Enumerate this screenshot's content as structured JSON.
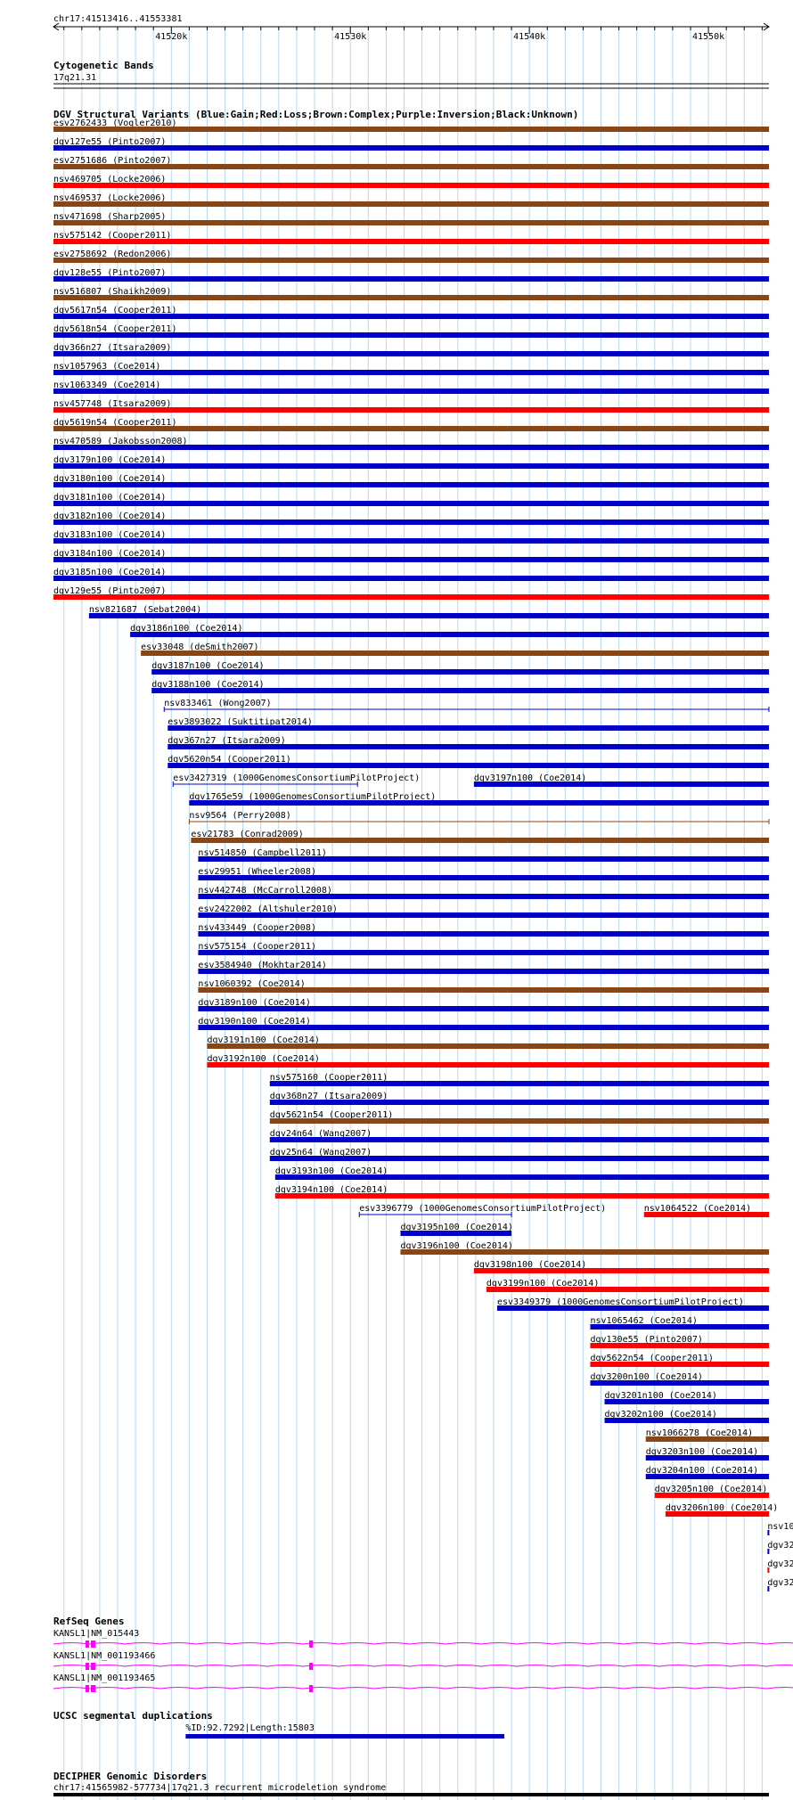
{
  "position": "chr17:41513416..41553381",
  "ruler": {
    "start": 41513416,
    "end": 41553381,
    "ticks": [
      {
        "label": "41520k",
        "pos": 41520000
      },
      {
        "label": "41530k",
        "pos": 41530000
      },
      {
        "label": "41540k",
        "pos": 41540000
      },
      {
        "label": "41550k",
        "pos": 41550000
      }
    ]
  },
  "tracks": {
    "cytoband": {
      "title": "Cytogenetic Bands",
      "label": "17q21.31"
    },
    "dgv": {
      "title": "DGV Structural Variants (Blue:Gain;Red:Loss;Brown:Complex;Purple:Inversion;Black:Unknown)",
      "colors": {
        "gain": "#0000cc",
        "loss": "#ff0000",
        "complex": "#8b4513",
        "inversion": "#800080",
        "unknown": "#000000"
      }
    },
    "refseq": {
      "title": "RefSeq Genes",
      "color": "#ff00ff",
      "genes": [
        {
          "label": "KANSL1|NM_015443"
        },
        {
          "label": "KANSL1|NM_001193466"
        },
        {
          "label": "KANSL1|NM_001193465"
        }
      ]
    },
    "segdup": {
      "title": "UCSC segmental duplications",
      "label": "%ID:92.7292|Length:15803",
      "start": 41520800,
      "end": 41538600,
      "color": "#0000cc"
    },
    "decipher": {
      "title": "DECIPHER Genomic Disorders",
      "label": "chr17:41565982-577734|17q21.3 recurrent microdeletion syndrome"
    }
  },
  "variants": [
    {
      "label": "esv2762433 (Vogler2010)",
      "start": 41513416,
      "end": 41553381,
      "type": "complex"
    },
    {
      "label": "dgv127e55 (Pinto2007)",
      "start": 41513416,
      "end": 41553381,
      "type": "gain"
    },
    {
      "label": "esv2751686 (Pinto2007)",
      "start": 41513416,
      "end": 41553381,
      "type": "complex"
    },
    {
      "label": "nsv469705 (Locke2006)",
      "start": 41513416,
      "end": 41553381,
      "type": "loss"
    },
    {
      "label": "nsv469537 (Locke2006)",
      "start": 41513416,
      "end": 41553381,
      "type": "complex"
    },
    {
      "label": "nsv471698 (Sharp2005)",
      "start": 41513416,
      "end": 41553381,
      "type": "complex"
    },
    {
      "label": "nsv575142 (Cooper2011)",
      "start": 41513416,
      "end": 41553381,
      "type": "loss"
    },
    {
      "label": "esv2758692 (Redon2006)",
      "start": 41513416,
      "end": 41553381,
      "type": "complex"
    },
    {
      "label": "dgv128e55 (Pinto2007)",
      "start": 41513416,
      "end": 41553381,
      "type": "gain"
    },
    {
      "label": "nsv516807 (Shaikh2009)",
      "start": 41513416,
      "end": 41553381,
      "type": "complex"
    },
    {
      "label": "dgv5617n54 (Cooper2011)",
      "start": 41513416,
      "end": 41553381,
      "type": "gain"
    },
    {
      "label": "dgv5618n54 (Cooper2011)",
      "start": 41513416,
      "end": 41553381,
      "type": "gain"
    },
    {
      "label": "dgv366n27 (Itsara2009)",
      "start": 41513416,
      "end": 41553381,
      "type": "gain"
    },
    {
      "label": "nsv1057963 (Coe2014)",
      "start": 41513416,
      "end": 41553381,
      "type": "gain"
    },
    {
      "label": "nsv1063349 (Coe2014)",
      "start": 41513416,
      "end": 41553381,
      "type": "gain"
    },
    {
      "label": "nsv457748 (Itsara2009)",
      "start": 41513416,
      "end": 41553381,
      "type": "loss"
    },
    {
      "label": "dgv5619n54 (Cooper2011)",
      "start": 41513416,
      "end": 41553381,
      "type": "complex"
    },
    {
      "label": "nsv470589 (Jakobsson2008)",
      "start": 41513416,
      "end": 41553381,
      "type": "gain"
    },
    {
      "label": "dgv3179n100 (Coe2014)",
      "start": 41513416,
      "end": 41553381,
      "type": "gain"
    },
    {
      "label": "dgv3180n100 (Coe2014)",
      "start": 41513416,
      "end": 41553381,
      "type": "gain"
    },
    {
      "label": "dgv3181n100 (Coe2014)",
      "start": 41513416,
      "end": 41553381,
      "type": "gain"
    },
    {
      "label": "dgv3182n100 (Coe2014)",
      "start": 41513416,
      "end": 41553381,
      "type": "gain"
    },
    {
      "label": "dgv3183n100 (Coe2014)",
      "start": 41513416,
      "end": 41553381,
      "type": "gain"
    },
    {
      "label": "dgv3184n100 (Coe2014)",
      "start": 41513416,
      "end": 41553381,
      "type": "gain"
    },
    {
      "label": "dgv3185n100 (Coe2014)",
      "start": 41513416,
      "end": 41553381,
      "type": "gain"
    },
    {
      "label": "dgv129e55 (Pinto2007)",
      "start": 41513416,
      "end": 41553381,
      "type": "loss"
    },
    {
      "label": "nsv821687 (Sebat2004)",
      "start": 41515400,
      "end": 41553381,
      "type": "gain"
    },
    {
      "label": "dgv3186n100 (Coe2014)",
      "start": 41517700,
      "end": 41553381,
      "type": "gain"
    },
    {
      "label": "esv33048 (deSmith2007)",
      "start": 41518300,
      "end": 41553381,
      "type": "complex"
    },
    {
      "label": "dgv3187n100 (Coe2014)",
      "start": 41518900,
      "end": 41553381,
      "type": "gain"
    },
    {
      "label": "dgv3188n100 (Coe2014)",
      "start": 41518900,
      "end": 41553381,
      "type": "gain"
    },
    {
      "label": "nsv833461 (Wong2007)",
      "start": 41519600,
      "end": 41553381,
      "type": "gain",
      "thin": true
    },
    {
      "label": "esv3893022 (Suktitipat2014)",
      "start": 41519800,
      "end": 41553381,
      "type": "gain"
    },
    {
      "label": "dgv367n27 (Itsara2009)",
      "start": 41519800,
      "end": 41553381,
      "type": "gain"
    },
    {
      "label": "dgv5620n54 (Cooper2011)",
      "start": 41519800,
      "end": 41553381,
      "type": "gain"
    },
    {
      "label": "esv3427319 (1000GenomesConsortiumPilotProject)",
      "start": 41520100,
      "end": 41530400,
      "type": "gain",
      "thin": true
    },
    {
      "label": "dgv1765e59 (1000GenomesConsortiumPilotProject)",
      "start": 41521000,
      "end": 41553381,
      "type": "gain"
    },
    {
      "label": "nsv9564 (Perry2008)",
      "start": 41521000,
      "end": 41553381,
      "type": "complex",
      "thin": true
    },
    {
      "label": "esv21783 (Conrad2009)",
      "start": 41521100,
      "end": 41553381,
      "type": "complex"
    },
    {
      "label": "nsv514850 (Campbell2011)",
      "start": 41521500,
      "end": 41553381,
      "type": "gain"
    },
    {
      "label": "esv29951 (Wheeler2008)",
      "start": 41521500,
      "end": 41553381,
      "type": "gain"
    },
    {
      "label": "nsv442748 (McCarroll2008)",
      "start": 41521500,
      "end": 41553381,
      "type": "gain"
    },
    {
      "label": "esv2422002 (Altshuler2010)",
      "start": 41521500,
      "end": 41553381,
      "type": "gain"
    },
    {
      "label": "nsv433449 (Cooper2008)",
      "start": 41521500,
      "end": 41553381,
      "type": "gain"
    },
    {
      "label": "nsv575154 (Cooper2011)",
      "start": 41521500,
      "end": 41553381,
      "type": "gain"
    },
    {
      "label": "esv3584940 (Mokhtar2014)",
      "start": 41521500,
      "end": 41553381,
      "type": "gain"
    },
    {
      "label": "nsv1060392 (Coe2014)",
      "start": 41521500,
      "end": 41553381,
      "type": "complex"
    },
    {
      "label": "dgv3189n100 (Coe2014)",
      "start": 41521500,
      "end": 41553381,
      "type": "gain"
    },
    {
      "label": "dgv3190n100 (Coe2014)",
      "start": 41521500,
      "end": 41553381,
      "type": "gain"
    },
    {
      "label": "dgv3191n100 (Coe2014)",
      "start": 41522000,
      "end": 41553381,
      "type": "complex"
    },
    {
      "label": "dgv3192n100 (Coe2014)",
      "start": 41522000,
      "end": 41553381,
      "type": "loss"
    },
    {
      "label": "nsv575160 (Cooper2011)",
      "start": 41525500,
      "end": 41553381,
      "type": "gain"
    },
    {
      "label": "dgv368n27 (Itsara2009)",
      "start": 41525500,
      "end": 41553381,
      "type": "gain"
    },
    {
      "label": "dgv5621n54 (Cooper2011)",
      "start": 41525500,
      "end": 41553381,
      "type": "complex"
    },
    {
      "label": "dgv24n64 (Wang2007)",
      "start": 41525500,
      "end": 41553381,
      "type": "gain"
    },
    {
      "label": "dgv25n64 (Wang2007)",
      "start": 41525500,
      "end": 41553381,
      "type": "gain"
    },
    {
      "label": "dgv3193n100 (Coe2014)",
      "start": 41525800,
      "end": 41553381,
      "type": "gain"
    },
    {
      "label": "dgv3194n100 (Coe2014)",
      "start": 41525800,
      "end": 41553381,
      "type": "loss"
    },
    {
      "label": "esv3396779 (1000GenomesConsortiumPilotProject)",
      "start": 41530500,
      "end": 41539000,
      "type": "gain",
      "thin": true
    },
    {
      "label": "dgv3195n100 (Coe2014)",
      "start": 41532800,
      "end": 41539000,
      "type": "gain"
    },
    {
      "label": "dgv3196n100 (Coe2014)",
      "start": 41532800,
      "end": 41553381,
      "type": "complex"
    },
    {
      "label": "dgv3197n100 (Coe2014)",
      "start": 41536900,
      "end": 41553381,
      "type": "gain"
    },
    {
      "label": "dgv3198n100 (Coe2014)",
      "start": 41536900,
      "end": 41553381,
      "type": "loss"
    },
    {
      "label": "dgv3199n100 (Coe2014)",
      "start": 41537600,
      "end": 41553381,
      "type": "loss"
    },
    {
      "label": "esv3349379 (1000GenomesConsortiumPilotProject)",
      "start": 41538200,
      "end": 41553381,
      "type": "gain"
    },
    {
      "label": "nsv1065462 (Coe2014)",
      "start": 41543400,
      "end": 41553381,
      "type": "gain"
    },
    {
      "label": "dgv130e55 (Pinto2007)",
      "start": 41543400,
      "end": 41553381,
      "type": "loss"
    },
    {
      "label": "dgv5622n54 (Cooper2011)",
      "start": 41543400,
      "end": 41553381,
      "type": "loss"
    },
    {
      "label": "dgv3200n100 (Coe2014)",
      "start": 41543400,
      "end": 41553381,
      "type": "gain"
    },
    {
      "label": "dgv3201n100 (Coe2014)",
      "start": 41544200,
      "end": 41553381,
      "type": "gain"
    },
    {
      "label": "dgv3202n100 (Coe2014)",
      "start": 41544200,
      "end": 41553381,
      "type": "gain"
    },
    {
      "label": "nsv1064522 (Coe2014)",
      "start": 41546400,
      "end": 41553381,
      "type": "loss"
    },
    {
      "label": "nsv1066278 (Coe2014)",
      "start": 41546500,
      "end": 41553381,
      "type": "complex"
    },
    {
      "label": "dgv3203n100 (Coe2014)",
      "start": 41546500,
      "end": 41553381,
      "type": "gain"
    },
    {
      "label": "dgv3204n100 (Coe2014)",
      "start": 41546500,
      "end": 41553381,
      "type": "gain"
    },
    {
      "label": "dgv3205n100 (Coe2014)",
      "start": 41547000,
      "end": 41553381,
      "type": "loss"
    },
    {
      "label": "dgv3206n100 (Coe2014)",
      "start": 41547600,
      "end": 41553381,
      "type": "loss"
    },
    {
      "label": "nsv10",
      "start": 41553300,
      "end": 41553381,
      "type": "gain"
    },
    {
      "label": "dgv32",
      "start": 41553300,
      "end": 41553381,
      "type": "gain"
    },
    {
      "label": "dgv32",
      "start": 41553300,
      "end": 41553381,
      "type": "loss"
    },
    {
      "label": "dgv32",
      "start": 41553300,
      "end": 41553381,
      "type": "gain"
    }
  ]
}
